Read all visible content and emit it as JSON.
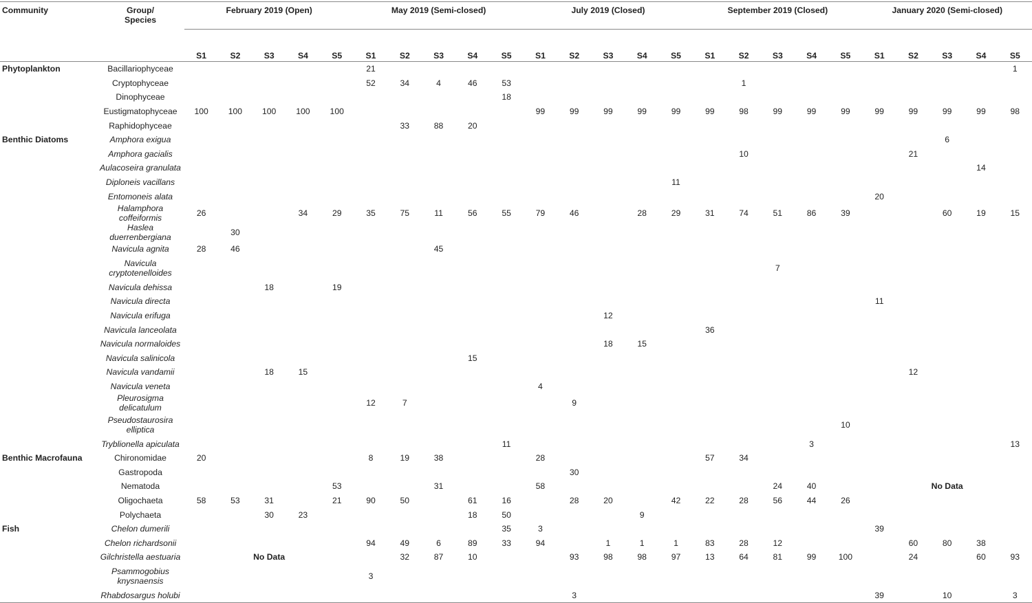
{
  "header": {
    "community": "Community",
    "group_species_1": "Group/",
    "group_species_2": "Species",
    "periods": [
      "February 2019 (Open)",
      "May 2019 (Semi-closed)",
      "July 2019 (Closed)",
      "September 2019 (Closed)",
      "January 2020 (Semi-closed)"
    ],
    "sites": [
      "S1",
      "S2",
      "S3",
      "S4",
      "S5",
      "S1",
      "S2",
      "S3",
      "S4",
      "S5",
      "S1",
      "S2",
      "S3",
      "S4",
      "S5",
      "S1",
      "S2",
      "S3",
      "S4",
      "S5",
      "S1",
      "S2",
      "S3",
      "S4",
      "S5"
    ]
  },
  "no_data_label": "No Data",
  "rows": [
    {
      "community": "Phytoplankton",
      "species": "Bacillariophyceae",
      "italic": false,
      "values": [
        "",
        "",
        "",
        "",
        "",
        "21",
        "",
        "",
        "",
        "",
        "",
        "",
        "",
        "",
        "",
        "",
        "",
        "",
        "",
        "",
        "",
        "",
        "",
        "",
        "1"
      ]
    },
    {
      "community": "",
      "species": "Cryptophyceae",
      "italic": false,
      "values": [
        "",
        "",
        "",
        "",
        "",
        "52",
        "34",
        "4",
        "46",
        "53",
        "",
        "",
        "",
        "",
        "",
        "",
        "1",
        "",
        "",
        "",
        "",
        "",
        "",
        "",
        ""
      ]
    },
    {
      "community": "",
      "species": "Dinophyceae",
      "italic": false,
      "values": [
        "",
        "",
        "",
        "",
        "",
        "",
        "",
        "",
        "",
        "18",
        "",
        "",
        "",
        "",
        "",
        "",
        "",
        "",
        "",
        "",
        "",
        "",
        "",
        "",
        ""
      ]
    },
    {
      "community": "",
      "species": "Eustigmatophyceae",
      "italic": false,
      "values": [
        "100",
        "100",
        "100",
        "100",
        "100",
        "",
        "",
        "",
        "",
        "",
        "99",
        "99",
        "99",
        "99",
        "99",
        "99",
        "98",
        "99",
        "99",
        "99",
        "99",
        "99",
        "99",
        "99",
        "98"
      ]
    },
    {
      "community": "",
      "species": "Raphidophyceae",
      "italic": false,
      "values": [
        "",
        "",
        "",
        "",
        "",
        "",
        "33",
        "88",
        "20",
        "",
        "",
        "",
        "",
        "",
        "",
        "",
        "",
        "",
        "",
        "",
        "",
        "",
        "",
        "",
        ""
      ]
    },
    {
      "community": "Benthic Diatoms",
      "species": "Amphora exigua",
      "italic": true,
      "values": [
        "",
        "",
        "",
        "",
        "",
        "",
        "",
        "",
        "",
        "",
        "",
        "",
        "",
        "",
        "",
        "",
        "",
        "",
        "",
        "",
        "",
        "",
        "6",
        "",
        ""
      ]
    },
    {
      "community": "",
      "species": "Amphora gacialis",
      "italic": true,
      "values": [
        "",
        "",
        "",
        "",
        "",
        "",
        "",
        "",
        "",
        "",
        "",
        "",
        "",
        "",
        "",
        "",
        "10",
        "",
        "",
        "",
        "",
        "21",
        "",
        "",
        ""
      ]
    },
    {
      "community": "",
      "species": "Aulacoseira granulata",
      "italic": true,
      "values": [
        "",
        "",
        "",
        "",
        "",
        "",
        "",
        "",
        "",
        "",
        "",
        "",
        "",
        "",
        "",
        "",
        "",
        "",
        "",
        "",
        "",
        "",
        "",
        "14",
        ""
      ]
    },
    {
      "community": "",
      "species": "Diploneis vacillans",
      "italic": true,
      "values": [
        "",
        "",
        "",
        "",
        "",
        "",
        "",
        "",
        "",
        "",
        "",
        "",
        "",
        "",
        "11",
        "",
        "",
        "",
        "",
        "",
        "",
        "",
        "",
        "",
        ""
      ]
    },
    {
      "community": "",
      "species": "Entomoneis alata",
      "italic": true,
      "values": [
        "",
        "",
        "",
        "",
        "",
        "",
        "",
        "",
        "",
        "",
        "",
        "",
        "",
        "",
        "",
        "",
        "",
        "",
        "",
        "",
        "20",
        "",
        "",
        "",
        ""
      ]
    },
    {
      "community": "",
      "species": "Halamphora coffeiformis",
      "italic": true,
      "values": [
        "26",
        "",
        "",
        "34",
        "29",
        "35",
        "75",
        "11",
        "56",
        "55",
        "79",
        "46",
        "",
        "28",
        "29",
        "31",
        "74",
        "51",
        "86",
        "39",
        "",
        "",
        "60",
        "19",
        "15"
      ]
    },
    {
      "community": "",
      "species": "Haslea duerrenbergiana",
      "italic": true,
      "values": [
        "",
        "30",
        "",
        "",
        "",
        "",
        "",
        "",
        "",
        "",
        "",
        "",
        "",
        "",
        "",
        "",
        "",
        "",
        "",
        "",
        "",
        "",
        "",
        "",
        ""
      ]
    },
    {
      "community": "",
      "species": "Navicula agnita",
      "italic": true,
      "values": [
        "28",
        "46",
        "",
        "",
        "",
        "",
        "",
        "45",
        "",
        "",
        "",
        "",
        "",
        "",
        "",
        "",
        "",
        "",
        "",
        "",
        "",
        "",
        "",
        "",
        ""
      ]
    },
    {
      "community": "",
      "species": "Navicula cryptotenelloides",
      "italic": true,
      "values": [
        "",
        "",
        "",
        "",
        "",
        "",
        "",
        "",
        "",
        "",
        "",
        "",
        "",
        "",
        "",
        "",
        "",
        "7",
        "",
        "",
        "",
        "",
        "",
        "",
        ""
      ]
    },
    {
      "community": "",
      "species": "Navicula dehissa",
      "italic": true,
      "values": [
        "",
        "",
        "18",
        "",
        "19",
        "",
        "",
        "",
        "",
        "",
        "",
        "",
        "",
        "",
        "",
        "",
        "",
        "",
        "",
        "",
        "",
        "",
        "",
        "",
        ""
      ]
    },
    {
      "community": "",
      "species": "Navicula directa",
      "italic": true,
      "values": [
        "",
        "",
        "",
        "",
        "",
        "",
        "",
        "",
        "",
        "",
        "",
        "",
        "",
        "",
        "",
        "",
        "",
        "",
        "",
        "",
        "11",
        "",
        "",
        "",
        ""
      ]
    },
    {
      "community": "",
      "species": "Navicula erifuga",
      "italic": true,
      "values": [
        "",
        "",
        "",
        "",
        "",
        "",
        "",
        "",
        "",
        "",
        "",
        "",
        "12",
        "",
        "",
        "",
        "",
        "",
        "",
        "",
        "",
        "",
        "",
        "",
        ""
      ]
    },
    {
      "community": "",
      "species": "Navicula lanceolata",
      "italic": true,
      "values": [
        "",
        "",
        "",
        "",
        "",
        "",
        "",
        "",
        "",
        "",
        "",
        "",
        "",
        "",
        "",
        "36",
        "",
        "",
        "",
        "",
        "",
        "",
        "",
        "",
        ""
      ]
    },
    {
      "community": "",
      "species": "Navicula normaloides",
      "italic": true,
      "values": [
        "",
        "",
        "",
        "",
        "",
        "",
        "",
        "",
        "",
        "",
        "",
        "",
        "18",
        "15",
        "",
        "",
        "",
        "",
        "",
        "",
        "",
        "",
        "",
        "",
        ""
      ]
    },
    {
      "community": "",
      "species": "Navicula salinicola",
      "italic": true,
      "values": [
        "",
        "",
        "",
        "",
        "",
        "",
        "",
        "",
        "15",
        "",
        "",
        "",
        "",
        "",
        "",
        "",
        "",
        "",
        "",
        "",
        "",
        "",
        "",
        "",
        ""
      ]
    },
    {
      "community": "",
      "species": "Navicula vandamii",
      "italic": true,
      "values": [
        "",
        "",
        "18",
        "15",
        "",
        "",
        "",
        "",
        "",
        "",
        "",
        "",
        "",
        "",
        "",
        "",
        "",
        "",
        "",
        "",
        "",
        "12",
        "",
        "",
        ""
      ]
    },
    {
      "community": "",
      "species": "Navicula veneta",
      "italic": true,
      "values": [
        "",
        "",
        "",
        "",
        "",
        "",
        "",
        "",
        "",
        "",
        "4",
        "",
        "",
        "",
        "",
        "",
        "",
        "",
        "",
        "",
        "",
        "",
        "",
        "",
        ""
      ]
    },
    {
      "community": "",
      "species": "Pleurosigma delicatulum",
      "italic": true,
      "values": [
        "",
        "",
        "",
        "",
        "",
        "12",
        "7",
        "",
        "",
        "",
        "",
        "9",
        "",
        "",
        "",
        "",
        "",
        "",
        "",
        "",
        "",
        "",
        "",
        "",
        ""
      ]
    },
    {
      "community": "",
      "species": "Pseudostaurosira elliptica",
      "italic": true,
      "values": [
        "",
        "",
        "",
        "",
        "",
        "",
        "",
        "",
        "",
        "",
        "",
        "",
        "",
        "",
        "",
        "",
        "",
        "",
        "",
        "10",
        "",
        "",
        "",
        "",
        ""
      ]
    },
    {
      "community": "",
      "species": "Tryblionella apiculata",
      "italic": true,
      "values": [
        "",
        "",
        "",
        "",
        "",
        "",
        "",
        "",
        "",
        "11",
        "",
        "",
        "",
        "",
        "",
        "",
        "",
        "",
        "3",
        "",
        "",
        "",
        "",
        "",
        "13"
      ]
    },
    {
      "community": "Benthic Macrofauna",
      "species": "Chironomidae",
      "italic": false,
      "values": [
        "20",
        "",
        "",
        "",
        "",
        "8",
        "19",
        "38",
        "",
        "",
        "28",
        "",
        "",
        "",
        "",
        "57",
        "34",
        "",
        "",
        "",
        "",
        "",
        "",
        "",
        ""
      ]
    },
    {
      "community": "",
      "species": "Gastropoda",
      "italic": false,
      "values": [
        "",
        "",
        "",
        "",
        "",
        "",
        "",
        "",
        "",
        "",
        "",
        "30",
        "",
        "",
        "",
        "",
        "",
        "",
        "",
        "",
        "",
        "",
        "",
        "",
        ""
      ]
    },
    {
      "community": "",
      "species": "Nematoda",
      "italic": false,
      "values": [
        "",
        "",
        "",
        "",
        "53",
        "",
        "",
        "31",
        "",
        "",
        "58",
        "",
        "",
        "",
        "",
        "",
        "",
        "24",
        "40",
        "",
        "",
        "",
        "",
        "",
        ""
      ]
    },
    {
      "community": "",
      "species": "Oligochaeta",
      "italic": false,
      "values": [
        "58",
        "53",
        "31",
        "",
        "21",
        "90",
        "50",
        "",
        "61",
        "16",
        "",
        "28",
        "20",
        "",
        "42",
        "22",
        "28",
        "56",
        "44",
        "26",
        "",
        "",
        "",
        "",
        ""
      ]
    },
    {
      "community": "",
      "species": "Polychaeta",
      "italic": false,
      "values": [
        "",
        "",
        "30",
        "23",
        "",
        "",
        "",
        "",
        "18",
        "50",
        "",
        "",
        "",
        "9",
        "",
        "",
        "",
        "",
        "",
        "",
        "",
        "",
        "",
        "",
        ""
      ]
    },
    {
      "community": "Fish",
      "species": "Chelon dumerili",
      "italic": true,
      "values": [
        "",
        "",
        "",
        "",
        "",
        "",
        "",
        "",
        "",
        "35",
        "3",
        "",
        "",
        "",
        "",
        "",
        "",
        "",
        "",
        "",
        "39",
        "",
        "",
        "",
        ""
      ]
    },
    {
      "community": "",
      "species": "Chelon richardsonii",
      "italic": true,
      "values": [
        "",
        "",
        "",
        "",
        "",
        "94",
        "49",
        "6",
        "89",
        "33",
        "94",
        "",
        "1",
        "1",
        "1",
        "83",
        "28",
        "12",
        "",
        "",
        "",
        "60",
        "80",
        "38",
        ""
      ]
    },
    {
      "community": "",
      "species": "Gilchristella aestuaria",
      "italic": true,
      "values": [
        "",
        "",
        "",
        "",
        "",
        "",
        "32",
        "87",
        "10",
        "",
        "",
        "93",
        "98",
        "98",
        "97",
        "13",
        "64",
        "81",
        "99",
        "100",
        "",
        "24",
        "",
        "60",
        "93"
      ]
    },
    {
      "community": "",
      "species": "Psammogobius knysnaensis",
      "italic": true,
      "values": [
        "",
        "",
        "",
        "",
        "",
        "3",
        "",
        "",
        "",
        "",
        "",
        "",
        "",
        "",
        "",
        "",
        "",
        "",
        "",
        "",
        "",
        "",
        "",
        "",
        ""
      ]
    },
    {
      "community": "",
      "species": "Rhabdosargus holubi",
      "italic": true,
      "values": [
        "",
        "",
        "",
        "",
        "",
        "",
        "",
        "",
        "",
        "",
        "",
        "3",
        "",
        "",
        "",
        "",
        "",
        "",
        "",
        "",
        "39",
        "",
        "10",
        "",
        "3"
      ]
    }
  ]
}
